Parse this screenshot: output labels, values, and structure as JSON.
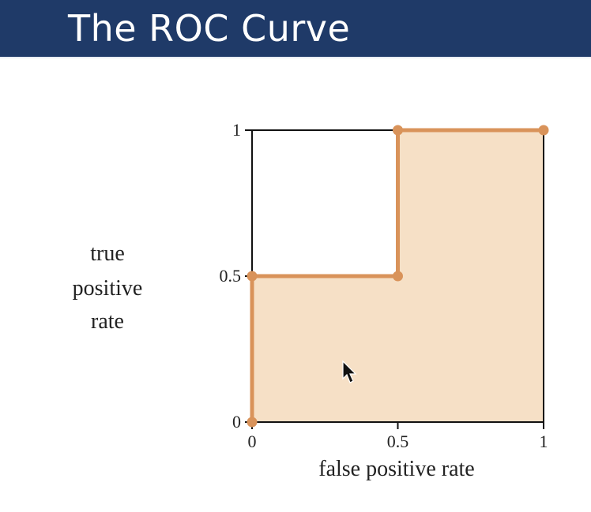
{
  "slide": {
    "title": "The ROC Curve"
  },
  "colors": {
    "title_bar": "#1f3a68",
    "curve": "#d9935a",
    "fill": "#f6e0c6",
    "frame": "#111111"
  },
  "chart_data": {
    "type": "line",
    "xlabel": "false positive rate",
    "ylabel_lines": [
      "true",
      "positive",
      "rate"
    ],
    "xlim": [
      0,
      1
    ],
    "ylim": [
      0,
      1
    ],
    "x_ticks": [
      "0",
      "0.5",
      "1"
    ],
    "y_ticks": [
      "0",
      "0.5",
      "1"
    ],
    "grid": false,
    "area_under_curve_shaded": true,
    "series": [
      {
        "points": [
          {
            "x": 0,
            "y": 0
          },
          {
            "x": 0,
            "y": 0.5
          },
          {
            "x": 0.5,
            "y": 0.5
          },
          {
            "x": 0.5,
            "y": 1
          },
          {
            "x": 1,
            "y": 1
          }
        ]
      }
    ]
  },
  "cursor": {
    "icon": "mouse-pointer-icon"
  }
}
